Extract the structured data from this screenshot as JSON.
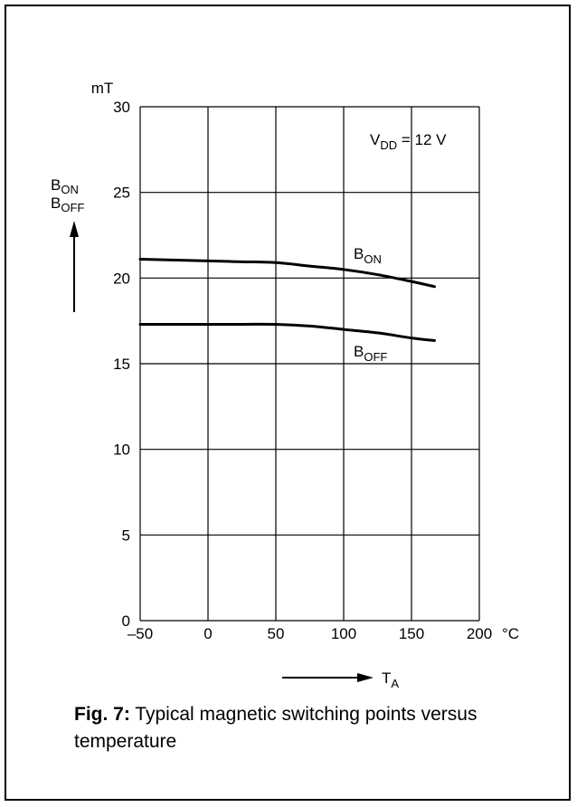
{
  "chart_data": {
    "type": "line",
    "unit_y": "mT",
    "unit_x": "°C",
    "ylabel_main": "B",
    "ylabel_sub_1": "ON",
    "ylabel_sub_2": "OFF",
    "xlabel_main": "T",
    "xlabel_sub": "A",
    "xlim": [
      -50,
      200
    ],
    "ylim": [
      0,
      30
    ],
    "x_ticks": [
      -50,
      0,
      50,
      100,
      150,
      200
    ],
    "x_tick_labels": [
      "–50",
      "0",
      "50",
      "100",
      "150",
      "200"
    ],
    "y_ticks": [
      0,
      5,
      10,
      15,
      20,
      25,
      30
    ],
    "y_tick_labels": [
      "0",
      "5",
      "10",
      "15",
      "20",
      "25",
      "30"
    ],
    "grid": true,
    "annotation": {
      "main": "V",
      "sub": "DD",
      "rest": " = 12 V"
    },
    "series": [
      {
        "name": "B_ON",
        "label_main": "B",
        "label_sub": "ON",
        "x": [
          -50,
          0,
          25,
          50,
          75,
          100,
          125,
          150,
          167
        ],
        "y": [
          21.1,
          21.0,
          20.95,
          20.9,
          20.7,
          20.5,
          20.2,
          19.8,
          19.5
        ]
      },
      {
        "name": "B_OFF",
        "label_main": "B",
        "label_sub": "OFF",
        "x": [
          -50,
          0,
          25,
          50,
          75,
          100,
          125,
          150,
          167
        ],
        "y": [
          17.3,
          17.3,
          17.3,
          17.3,
          17.2,
          17.0,
          16.8,
          16.5,
          16.35
        ]
      }
    ]
  },
  "caption": {
    "fig_label": "Fig. 7:",
    "text": " Typical magnetic switching points versus temperature"
  }
}
